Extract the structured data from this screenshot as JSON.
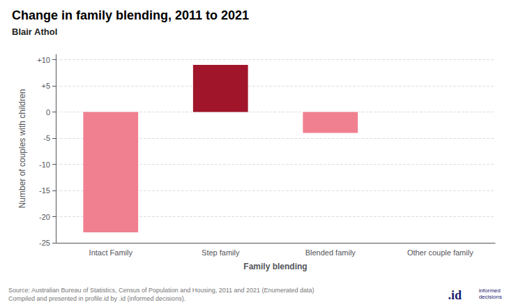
{
  "chart_data": {
    "type": "bar",
    "title": "Change in family blending, 2011 to 2021",
    "subtitle": "Blair Athol",
    "categories": [
      "Intact Family",
      "Step family",
      "Blended family",
      "Other couple family"
    ],
    "values": [
      -23,
      9,
      -4,
      0
    ],
    "colors": [
      "#f08090",
      "#a0152a",
      "#f08090",
      "#f08090"
    ],
    "xlabel": "Family blending",
    "ylabel": "Number of couples with children",
    "ylim": [
      -25,
      11
    ],
    "yticks": [
      -25,
      -20,
      -15,
      -10,
      -5,
      0,
      {
        "value": 5,
        "label": "+5"
      },
      {
        "value": 10,
        "label": "+10"
      }
    ],
    "grid": true,
    "annotations": [
      "Source: Australian Bureau of Statistics, Census of Population and Housing, 2011 and 2021 (Enumerated data)\nCompiled and presented in profile.id by .id (informed decisions).",
      ".id",
      "informed\ndecisions"
    ]
  }
}
